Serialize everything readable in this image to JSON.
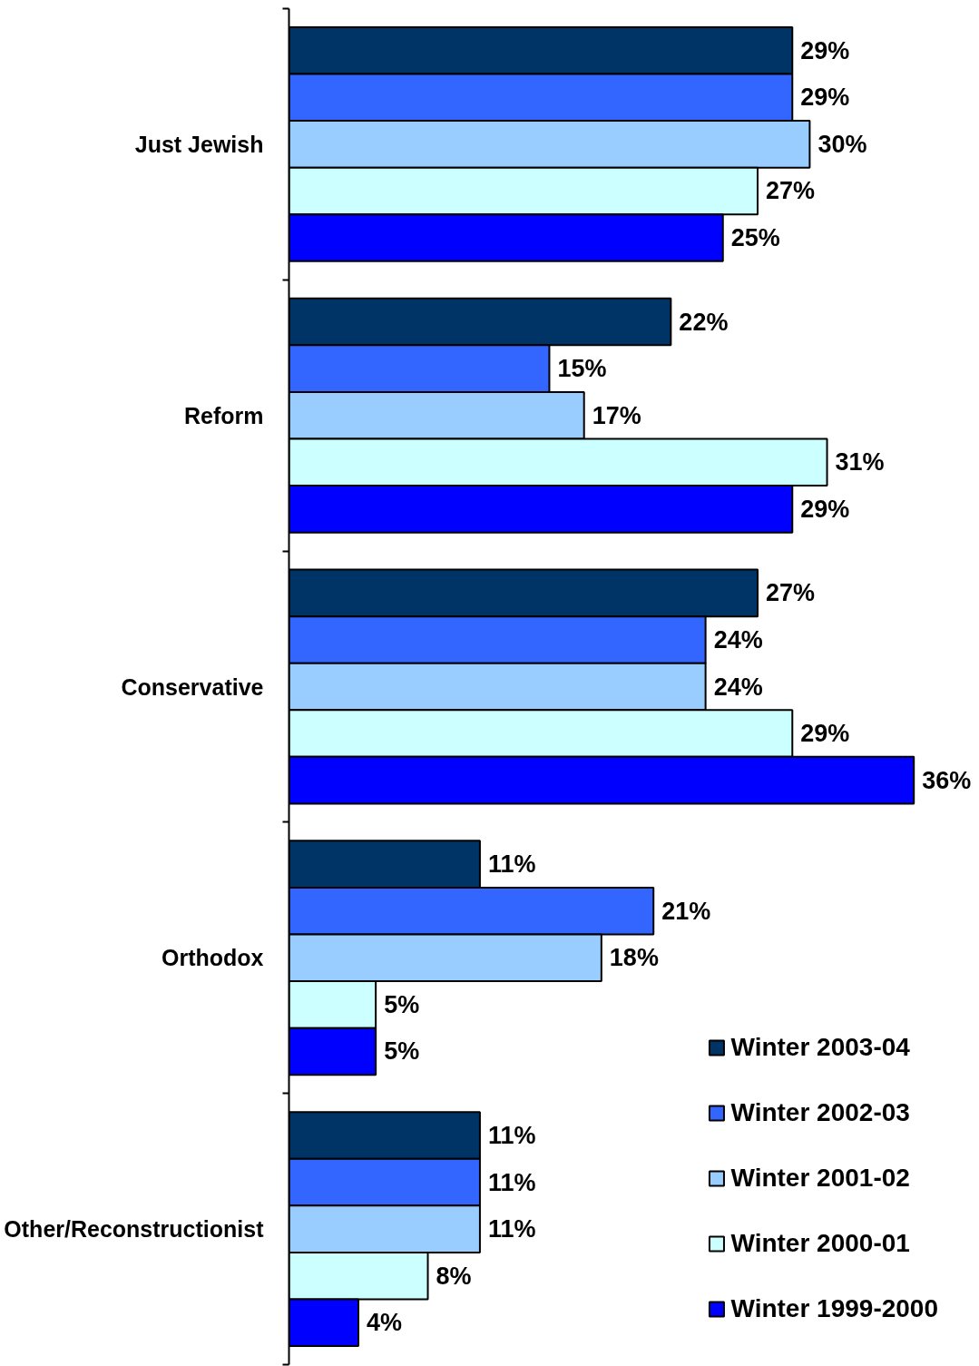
{
  "chart_data": {
    "type": "bar",
    "orientation": "horizontal",
    "categories": [
      "Just Jewish",
      "Reform",
      "Conservative",
      "Orthodox",
      "Other/Reconstructionist"
    ],
    "series": [
      {
        "name": "Winter 2003-04",
        "color": "#003366",
        "values": [
          29,
          22,
          27,
          11,
          11
        ],
        "value_labels": [
          "29%",
          "22%",
          "27%",
          "11%",
          "11%"
        ]
      },
      {
        "name": "Winter 2002-03",
        "color": "#3366ff",
        "values": [
          29,
          15,
          24,
          21,
          11
        ],
        "value_labels": [
          "29%",
          "15%",
          "24%",
          "21%",
          "11%"
        ]
      },
      {
        "name": "Winter 2001-02",
        "color": "#99ccff",
        "values": [
          30,
          17,
          24,
          18,
          11
        ],
        "value_labels": [
          "30%",
          "17%",
          "24%",
          "18%",
          "11%"
        ]
      },
      {
        "name": "Winter 2000-01",
        "color": "#ccffff",
        "values": [
          27,
          31,
          29,
          5,
          8
        ],
        "value_labels": [
          "27%",
          "31%",
          "29%",
          "5%",
          "8%"
        ]
      },
      {
        "name": "Winter 1999-2000",
        "color": "#0000ff",
        "values": [
          25,
          29,
          36,
          5,
          4
        ],
        "value_labels": [
          "25%",
          "29%",
          "36%",
          "5%",
          "4%"
        ]
      }
    ],
    "legend": "bottom right"
  }
}
